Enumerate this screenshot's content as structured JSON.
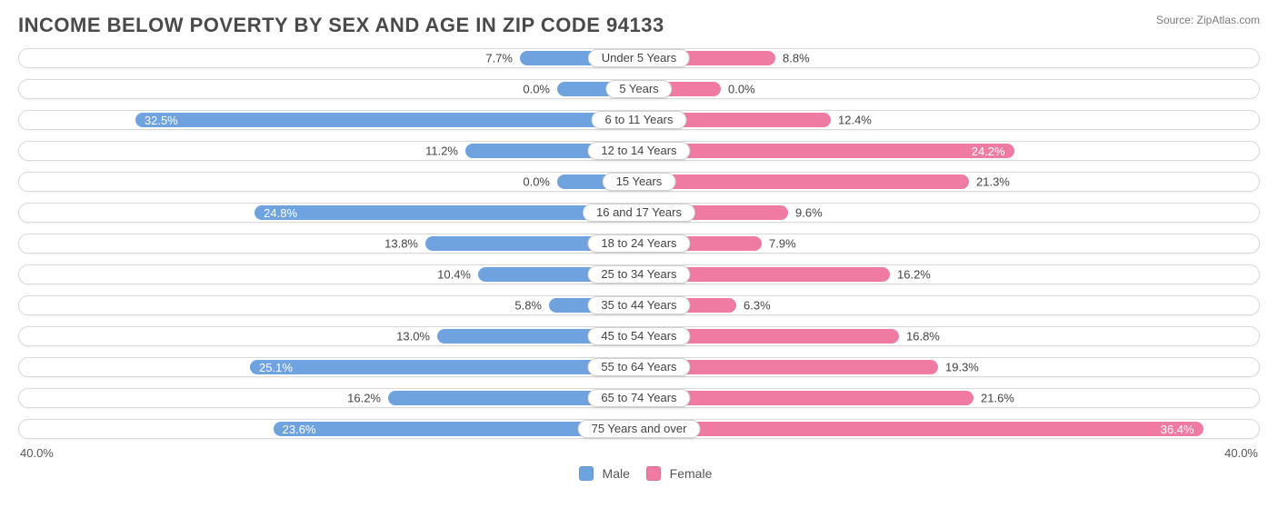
{
  "title": "INCOME BELOW POVERTY BY SEX AND AGE IN ZIP CODE 94133",
  "source": "Source: ZipAtlas.com",
  "chart": {
    "type": "population-pyramid-bar",
    "axis_max": 40.0,
    "axis_label_left": "40.0%",
    "axis_label_right": "40.0%",
    "male_color": "#6fa3e0",
    "female_color": "#f07ba2",
    "row_border_color": "#d9d9d9",
    "background_color": "#ffffff",
    "min_bar_label_threshold": 22.0,
    "rows": [
      {
        "category": "Under 5 Years",
        "male": 7.7,
        "female": 8.8
      },
      {
        "category": "5 Years",
        "male": 0.0,
        "female": 0.0
      },
      {
        "category": "6 to 11 Years",
        "male": 32.5,
        "female": 12.4
      },
      {
        "category": "12 to 14 Years",
        "male": 11.2,
        "female": 24.2
      },
      {
        "category": "15 Years",
        "male": 0.0,
        "female": 21.3
      },
      {
        "category": "16 and 17 Years",
        "male": 24.8,
        "female": 9.6
      },
      {
        "category": "18 to 24 Years",
        "male": 13.8,
        "female": 7.9
      },
      {
        "category": "25 to 34 Years",
        "male": 10.4,
        "female": 16.2
      },
      {
        "category": "35 to 44 Years",
        "male": 5.8,
        "female": 6.3
      },
      {
        "category": "45 to 54 Years",
        "male": 13.0,
        "female": 16.8
      },
      {
        "category": "55 to 64 Years",
        "male": 25.1,
        "female": 19.3
      },
      {
        "category": "65 to 74 Years",
        "male": 16.2,
        "female": 21.6
      },
      {
        "category": "75 Years and over",
        "male": 23.6,
        "female": 36.4
      }
    ]
  },
  "legend": {
    "male": "Male",
    "female": "Female"
  }
}
